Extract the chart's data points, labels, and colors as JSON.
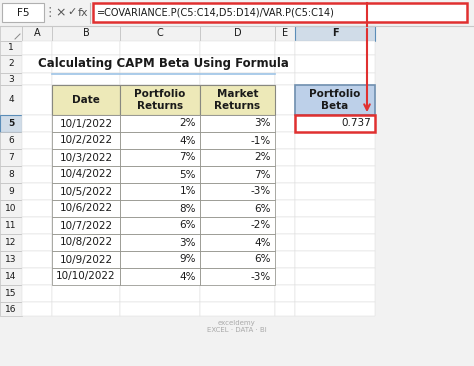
{
  "title": "Calculating CAPM Beta Using Formula",
  "formula_bar_cell": "F5",
  "formula_bar_text": "=COVARIANCE.P(C5:C14,D5:D14)/VAR.P(C5:C14)",
  "col_headers": [
    "Date",
    "Portfolio\nReturns",
    "Market\nReturns"
  ],
  "rows": [
    [
      "10/1/2022",
      "2%",
      "3%"
    ],
    [
      "10/2/2022",
      "4%",
      "-1%"
    ],
    [
      "10/3/2022",
      "7%",
      "2%"
    ],
    [
      "10/4/2022",
      "5%",
      "7%"
    ],
    [
      "10/5/2022",
      "1%",
      "-3%"
    ],
    [
      "10/6/2022",
      "8%",
      "6%"
    ],
    [
      "10/7/2022",
      "6%",
      "-2%"
    ],
    [
      "10/8/2022",
      "3%",
      "4%"
    ],
    [
      "10/9/2022",
      "9%",
      "6%"
    ],
    [
      "10/10/2022",
      "4%",
      "-3%"
    ]
  ],
  "beta_header": "Portfolio\nBeta",
  "beta_value": "0.737",
  "header_bg": "#ede9b8",
  "beta_header_bg": "#bdd0e9",
  "beta_value_bg": "#ffffff",
  "cell_bg": "#ffffff",
  "formula_bar_color": "#ffffff",
  "formula_border_color": "#e03030",
  "arrow_color": "#e03030",
  "excel_bg": "#f2f2f2",
  "sheet_bg": "#ffffff",
  "row_header_bg": "#f2f2f2",
  "col_header_bg": "#f2f2f2",
  "col_header_selected_bg": "#d0dce8",
  "row_header_selected_bg": "#d0dce8",
  "grid_light": "#d8d8d8",
  "grid_medium": "#b0b0b0",
  "table_border": "#888880",
  "beta_box_border": "#7090b0",
  "underline_color": "#9dc3e6",
  "watermark_text": "exceldemy\nEXCEL · DATA · BI",
  "row_nums": [
    "1",
    "2",
    "3",
    "4",
    "5",
    "6",
    "7",
    "8",
    "9",
    "10",
    "11",
    "12",
    "13",
    "14",
    "15",
    "16"
  ],
  "col_labels": [
    "A",
    "B",
    "C",
    "D",
    "E",
    "F"
  ]
}
